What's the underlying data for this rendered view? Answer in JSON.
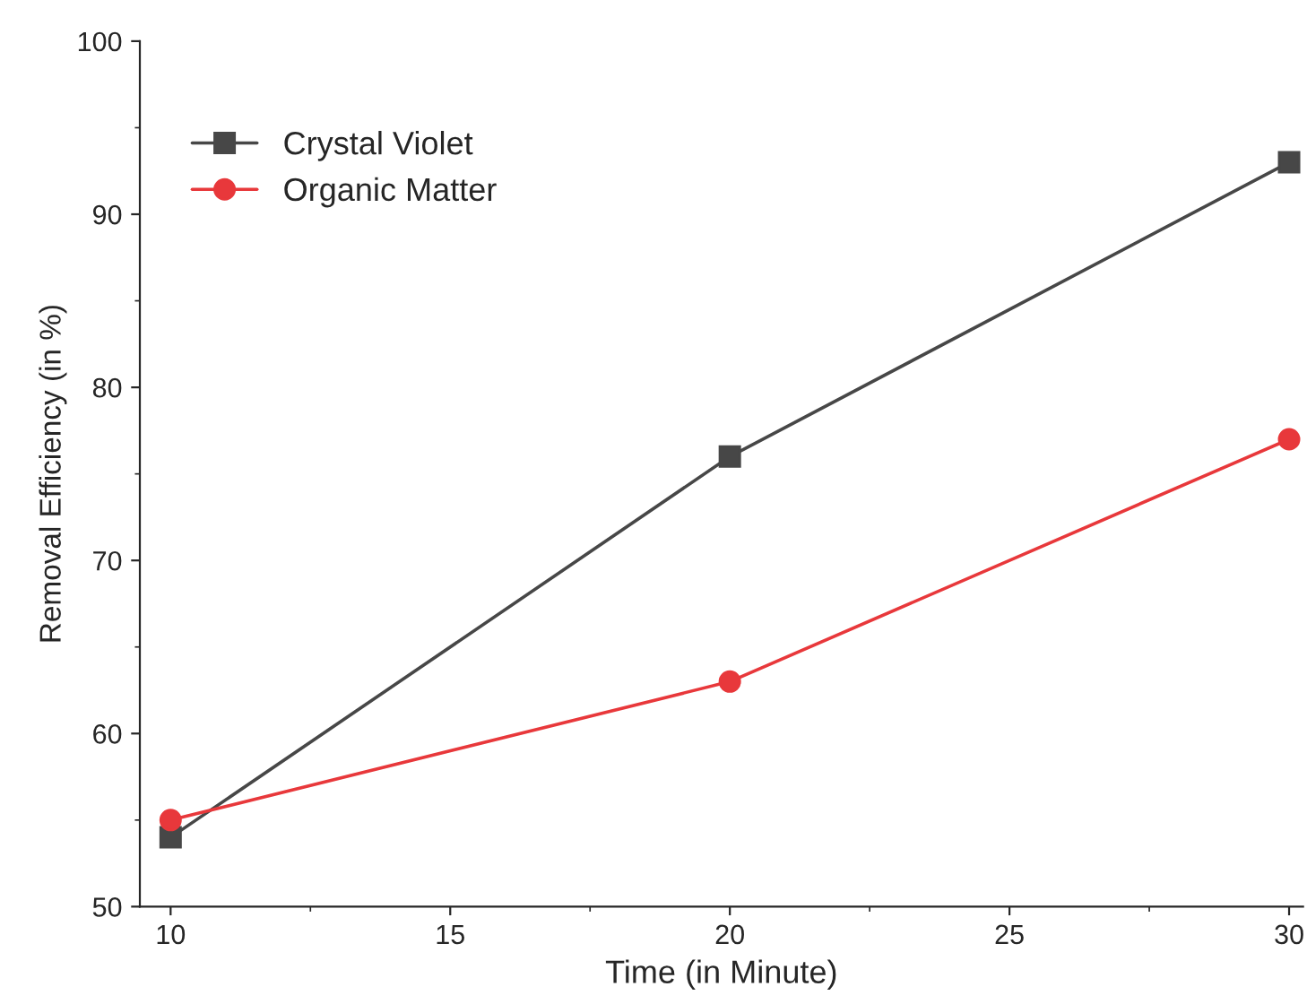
{
  "chart_data": {
    "type": "line",
    "xlabel": "Time (in Minute)",
    "ylabel": "Removal Efficiency (in %)",
    "x": [
      10,
      20,
      30
    ],
    "series": [
      {
        "name": "Crystal Violet",
        "color": "#474747",
        "values": [
          54,
          76,
          93
        ],
        "marker": "square"
      },
      {
        "name": "Organic Matter",
        "color": "#e8383b",
        "values": [
          55,
          63,
          77
        ],
        "marker": "circle"
      }
    ],
    "xlim": [
      9.45,
      30.25
    ],
    "xticks": [
      10,
      15,
      20,
      25,
      30
    ],
    "ylim": [
      50,
      100
    ],
    "yticks": [
      50,
      60,
      70,
      80,
      90,
      100
    ],
    "grid": false,
    "legend": "top left",
    "line_style": "solid"
  }
}
